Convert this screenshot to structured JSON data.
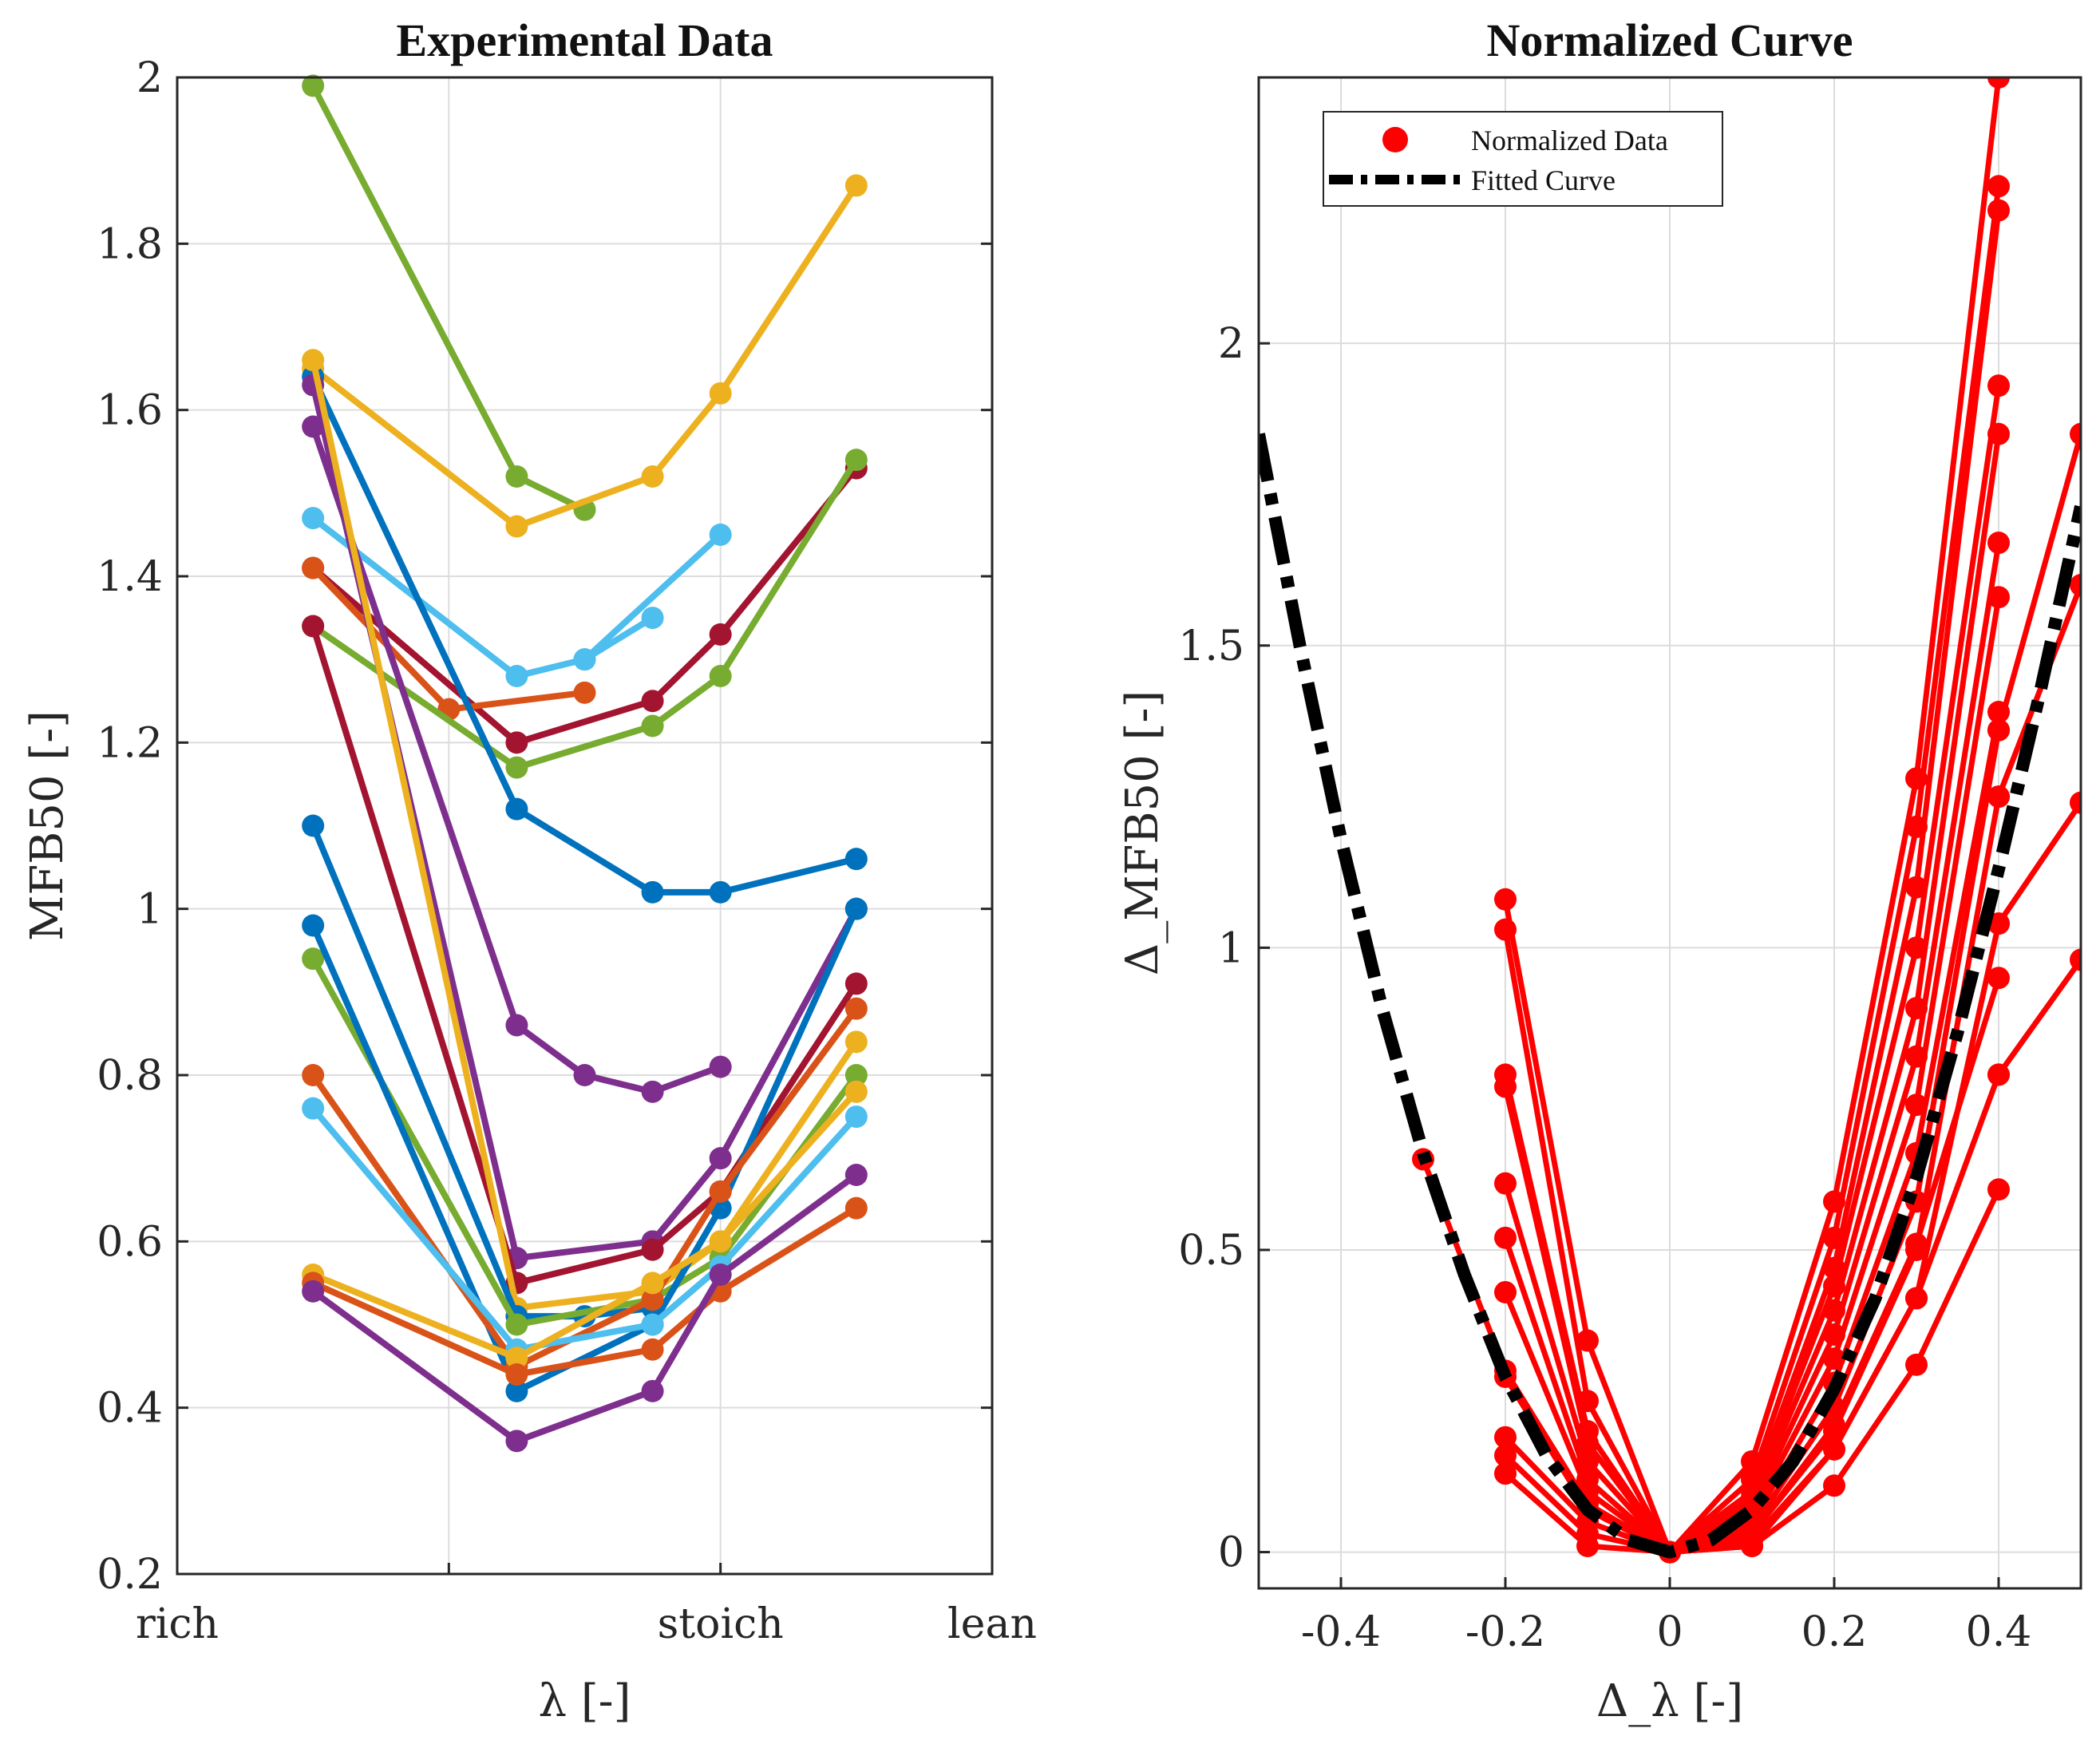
{
  "chart_data": [
    {
      "type": "line",
      "title": "Experimental Data",
      "xlabel": "λ [-]",
      "ylabel": "MFB50 [-]",
      "xlim": [
        0,
        4
      ],
      "ylim": [
        0.2,
        2.0
      ],
      "xtick_values": [
        0,
        2,
        4
      ],
      "xtick_labels": [
        "rich",
        "stoich",
        "lean"
      ],
      "yticks": [
        "0.2",
        "0.4",
        "0.6",
        "0.8",
        "1",
        "1.2",
        "1.4",
        "1.6",
        "1.8",
        "2"
      ],
      "grid": true,
      "series": [
        {
          "color": "#77AC30",
          "x": [
            1,
            2.5,
            3.0
          ],
          "y": [
            1.99,
            1.52,
            1.48
          ]
        },
        {
          "color": "#EDB120",
          "x": [
            1,
            2.5,
            3.5,
            4.0,
            5.0
          ],
          "y": [
            1.65,
            1.46,
            1.52,
            1.62,
            1.87
          ]
        },
        {
          "color": "#4DBEEE",
          "x": [
            1,
            2.5,
            3.0,
            3.5
          ],
          "y": [
            1.47,
            1.28,
            1.3,
            1.35
          ]
        },
        {
          "color": "#4DBEEE",
          "x": [
            3.0,
            4.0
          ],
          "y": [
            1.3,
            1.45
          ]
        },
        {
          "color": "#A2142F",
          "x": [
            1,
            2.5,
            3.5,
            4.0,
            5.0
          ],
          "y": [
            1.41,
            1.2,
            1.25,
            1.33,
            1.53
          ]
        },
        {
          "color": "#D95319",
          "x": [
            1,
            2.0,
            3.0
          ],
          "y": [
            1.41,
            1.24,
            1.26
          ]
        },
        {
          "color": "#77AC30",
          "x": [
            1,
            2.5,
            3.5,
            4.0,
            5.0
          ],
          "y": [
            1.34,
            1.17,
            1.22,
            1.28,
            1.54
          ]
        },
        {
          "color": "#0072BD",
          "x": [
            1,
            2.5,
            3.5,
            4.0,
            5.0
          ],
          "y": [
            1.64,
            1.12,
            1.02,
            1.02,
            1.06
          ]
        },
        {
          "color": "#7E2F8E",
          "x": [
            1,
            2.5,
            3.0,
            3.5,
            4.0
          ],
          "y": [
            1.58,
            0.86,
            0.8,
            0.78,
            0.81
          ]
        },
        {
          "color": "#7E2F8E",
          "x": [
            1,
            2.5,
            3.5,
            4.0,
            5.0
          ],
          "y": [
            1.63,
            0.58,
            0.6,
            0.7,
            1.0
          ]
        },
        {
          "color": "#A2142F",
          "x": [
            1,
            2.5,
            3.5,
            4.0,
            5.0
          ],
          "y": [
            1.34,
            0.55,
            0.59,
            0.66,
            0.91
          ]
        },
        {
          "color": "#EDB120",
          "x": [
            1,
            2.5,
            3.5,
            4.0,
            5.0
          ],
          "y": [
            1.66,
            0.52,
            0.54,
            0.6,
            0.84
          ]
        },
        {
          "color": "#0072BD",
          "x": [
            1,
            2.5,
            3.0,
            3.5
          ],
          "y": [
            1.1,
            0.51,
            0.51,
            0.52
          ]
        },
        {
          "color": "#77AC30",
          "x": [
            1,
            2.5,
            3.5,
            4.0,
            5.0
          ],
          "y": [
            0.94,
            0.5,
            0.53,
            0.58,
            0.8
          ]
        },
        {
          "color": "#0072BD",
          "x": [
            1,
            2.5,
            3.5,
            4.0,
            5.0
          ],
          "y": [
            0.98,
            0.42,
            0.5,
            0.64,
            1.0
          ]
        },
        {
          "color": "#D95319",
          "x": [
            1,
            2.5,
            3.5,
            4.0,
            5.0
          ],
          "y": [
            0.8,
            0.45,
            0.53,
            0.66,
            0.88
          ]
        },
        {
          "color": "#4DBEEE",
          "x": [
            1,
            2.5,
            3.5,
            4.0,
            5.0
          ],
          "y": [
            0.76,
            0.47,
            0.5,
            0.57,
            0.75
          ]
        },
        {
          "color": "#EDB120",
          "x": [
            1,
            2.5,
            3.5,
            4.0,
            5.0
          ],
          "y": [
            0.56,
            0.46,
            0.55,
            0.6,
            0.78
          ]
        },
        {
          "color": "#D95319",
          "x": [
            1,
            2.5,
            3.5,
            4.0,
            5.0
          ],
          "y": [
            0.55,
            0.44,
            0.47,
            0.54,
            0.64
          ]
        },
        {
          "color": "#7E2F8E",
          "x": [
            1,
            2.5,
            3.5,
            4.0,
            5.0
          ],
          "y": [
            0.54,
            0.36,
            0.42,
            0.56,
            0.68
          ]
        }
      ]
    },
    {
      "type": "line",
      "title": "Normalized Curve",
      "xlabel": "Δ_λ [-]",
      "ylabel": "Δ_MFB50 [-]",
      "xlim": [
        -0.5,
        0.5
      ],
      "ylim": [
        -0.06,
        2.44
      ],
      "xticks": [
        "-0.4",
        "-0.2",
        "0",
        "0.2",
        "0.4"
      ],
      "yticks": [
        "0",
        "0.5",
        "1",
        "1.5",
        "2"
      ],
      "grid": true,
      "legend": {
        "location": "top-left",
        "entries": [
          {
            "label": "Normalized Data",
            "color": "#FF0000",
            "style": "line-marker"
          },
          {
            "label": "Fitted Curve",
            "color": "#000000",
            "style": "dash-dot"
          }
        ]
      },
      "fitted_curve": {
        "color": "#000000",
        "x": [
          -0.5,
          -0.45,
          -0.4,
          -0.35,
          -0.3,
          -0.25,
          -0.2,
          -0.15,
          -0.1,
          -0.05,
          0,
          0.05,
          0.1,
          0.15,
          0.2,
          0.25,
          0.3,
          0.35,
          0.4,
          0.45,
          0.5
        ],
        "y": [
          1.85,
          1.5,
          1.18,
          0.9,
          0.66,
          0.46,
          0.29,
          0.16,
          0.07,
          0.02,
          0,
          0.02,
          0.07,
          0.15,
          0.27,
          0.42,
          0.62,
          0.86,
          1.13,
          1.42,
          1.73
        ]
      },
      "normalized_data": {
        "color": "#FF0000",
        "series": [
          {
            "x": [
              -0.2,
              -0.1,
              0,
              0.1,
              0.2,
              0.3,
              0.4
            ],
            "y": [
              1.08,
              0.35,
              0,
              0.15,
              0.58,
              1.28,
              2.44
            ]
          },
          {
            "x": [
              -0.2,
              -0.1,
              0,
              0.1,
              0.2,
              0.3,
              0.4
            ],
            "y": [
              1.03,
              0.25,
              0,
              0.12,
              0.52,
              1.2,
              2.26
            ]
          },
          {
            "x": [
              -0.2,
              -0.1,
              0,
              0.1,
              0.2,
              0.3,
              0.4
            ],
            "y": [
              0.79,
              0.2,
              0,
              0.1,
              0.47,
              1.1,
              2.22
            ]
          },
          {
            "x": [
              -0.2,
              -0.1,
              0,
              0.1,
              0.2,
              0.3,
              0.4
            ],
            "y": [
              0.77,
              0.18,
              0,
              0.09,
              0.44,
              1.0,
              1.93
            ]
          },
          {
            "x": [
              -0.2,
              -0.1,
              0,
              0.1,
              0.2,
              0.3,
              0.4
            ],
            "y": [
              0.61,
              0.15,
              0,
              0.08,
              0.4,
              0.9,
              1.85
            ]
          },
          {
            "x": [
              -0.2,
              -0.1,
              0,
              0.1,
              0.2,
              0.3,
              0.4
            ],
            "y": [
              0.52,
              0.12,
              0,
              0.07,
              0.36,
              0.82,
              1.67
            ]
          },
          {
            "x": [
              -0.2,
              -0.1,
              0,
              0.1,
              0.2,
              0.3,
              0.4
            ],
            "y": [
              0.43,
              0.1,
              0,
              0.06,
              0.32,
              0.74,
              1.58
            ]
          },
          {
            "x": [
              -0.2,
              -0.1,
              0,
              0.1,
              0.2,
              0.3,
              0.4
            ],
            "y": [
              0.29,
              0.07,
              0,
              0.05,
              0.28,
              0.66,
              1.39
            ]
          },
          {
            "x": [
              -0.2,
              -0.1,
              0,
              0.1,
              0.2,
              0.3,
              0.4
            ],
            "y": [
              0.19,
              0.05,
              0,
              0.04,
              0.24,
              0.58,
              1.36
            ]
          },
          {
            "x": [
              -0.2,
              -0.1,
              0,
              0.1,
              0.2,
              0.3,
              0.4
            ],
            "y": [
              0.16,
              0.03,
              0,
              0.03,
              0.2,
              0.5,
              1.25
            ]
          },
          {
            "x": [
              -0.2,
              -0.1,
              0,
              0.1,
              0.2,
              0.3,
              0.4
            ],
            "y": [
              0.13,
              0.01,
              0,
              0.01,
              0.17,
              0.42,
              1.04
            ]
          },
          {
            "x": [
              0,
              0.1,
              0.2,
              0.3,
              0.4
            ],
            "y": [
              0,
              0.03,
              0.21,
              0.51,
              0.95
            ]
          },
          {
            "x": [
              0,
              0.1,
              0.2,
              0.3,
              0.4
            ],
            "y": [
              0,
              0.02,
              0.17,
              0.42,
              0.79
            ]
          },
          {
            "x": [
              0,
              0.1,
              0.2,
              0.3,
              0.4
            ],
            "y": [
              0,
              0.01,
              0.11,
              0.31,
              0.6
            ]
          },
          {
            "x": [
              -0.3,
              -0.2,
              -0.1,
              0
            ],
            "y": [
              0.65,
              0.3,
              0.08,
              0
            ]
          },
          {
            "x": [
              0.4,
              0.5
            ],
            "y": [
              1.36,
              1.85
            ]
          },
          {
            "x": [
              0.4,
              0.5
            ],
            "y": [
              1.25,
              1.6
            ]
          },
          {
            "x": [
              0.4,
              0.5
            ],
            "y": [
              1.04,
              1.24
            ]
          },
          {
            "x": [
              0.4,
              0.5
            ],
            "y": [
              0.79,
              0.98
            ]
          }
        ]
      }
    }
  ]
}
